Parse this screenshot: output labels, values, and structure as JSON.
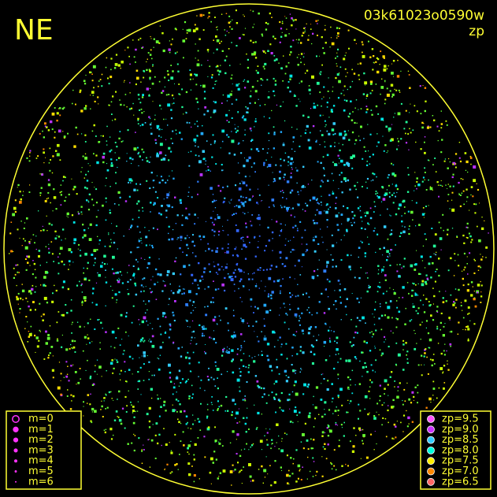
{
  "header": {
    "title": "NE",
    "frame_id": "03k61023o0590w",
    "quantity": "zp"
  },
  "magnitude_legend": {
    "items": [
      "m=0",
      "m=1",
      "m=2",
      "m=3",
      "m=4",
      "m=5",
      "m=6"
    ],
    "color": "#ff33ff"
  },
  "zp_legend": {
    "items": [
      {
        "label": "zp=9.5",
        "color": "#ff55ff"
      },
      {
        "label": "zp=9.0",
        "color": "#cc33ff"
      },
      {
        "label": "zp=8.5",
        "color": "#33ccff"
      },
      {
        "label": "zp=8.0",
        "color": "#00ffdd"
      },
      {
        "label": "zp=7.5",
        "color": "#ffee00"
      },
      {
        "label": "zp=7.0",
        "color": "#ff8800"
      },
      {
        "label": "zp=6.5",
        "color": "#ff6666"
      }
    ]
  }
}
